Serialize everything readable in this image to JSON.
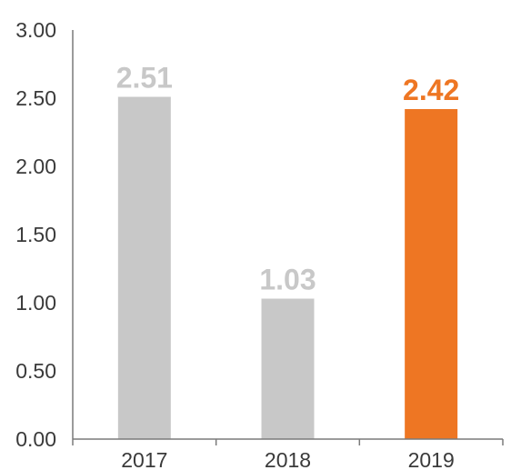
{
  "chart_data": {
    "type": "bar",
    "categories": [
      "2017",
      "2018",
      "2019"
    ],
    "values": [
      2.51,
      1.03,
      2.42
    ],
    "value_labels": [
      "2.51",
      "1.03",
      "2.42"
    ],
    "y_ticks": [
      "0.00",
      "0.50",
      "1.00",
      "1.50",
      "2.00",
      "2.50",
      "3.00"
    ],
    "y_tick_values": [
      0,
      0.5,
      1,
      1.5,
      2,
      2.5,
      3
    ],
    "ylim": [
      0,
      3
    ],
    "title": "",
    "xlabel": "",
    "ylabel": "",
    "grid": false,
    "legend": "none",
    "colors": {
      "default_bar": "#c8c8c8",
      "highlight_bar": "#ee7623",
      "default_label": "#c8c8c8",
      "highlight_label": "#ee7623",
      "axis": "#7a7a7a"
    },
    "highlight_index": 2
  }
}
